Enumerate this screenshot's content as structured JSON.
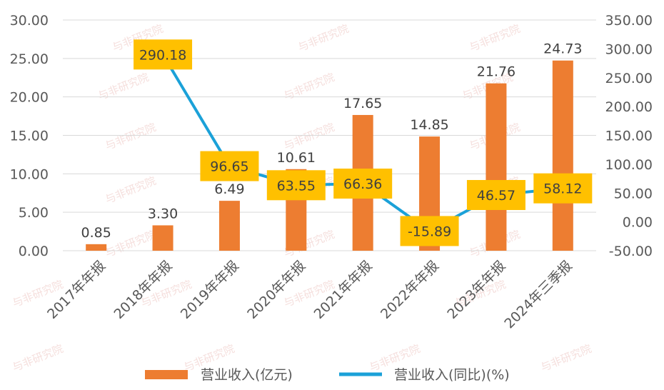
{
  "chart_data": {
    "type": "bar",
    "categories": [
      "2017年年报",
      "2018年年报",
      "2019年年报",
      "2020年年报",
      "2021年年报",
      "2022年年报",
      "2023年年报",
      "2024年三季报"
    ],
    "series": [
      {
        "name": "营业收入(亿元)",
        "type": "bar",
        "axis": "left",
        "color": "#ED7D31",
        "values": [
          0.85,
          3.3,
          6.49,
          10.61,
          17.65,
          14.85,
          21.76,
          24.73
        ],
        "labels": [
          "0.85",
          "3.30",
          "6.49",
          "10.61",
          "17.65",
          "14.85",
          "21.76",
          "24.73"
        ]
      },
      {
        "name": "营业收入(同比)(%)",
        "type": "line",
        "axis": "right",
        "color": "#1BA1D8",
        "values": [
          null,
          290.18,
          96.65,
          63.55,
          66.36,
          -15.89,
          46.57,
          58.12
        ],
        "labels": [
          "",
          "290.18",
          "96.65",
          "63.55",
          "66.36",
          "-15.89",
          "46.57",
          "58.12"
        ],
        "label_box_color": "#FFC000"
      }
    ],
    "y_left": {
      "ylim": [
        0,
        30
      ],
      "ticks": [
        "0.00",
        "5.00",
        "10.00",
        "15.00",
        "20.00",
        "25.00",
        "30.00"
      ]
    },
    "y_right": {
      "ylim": [
        -50,
        350
      ],
      "ticks": [
        "-50.00",
        "0.00",
        "50.00",
        "100.00",
        "150.00",
        "200.00",
        "250.00",
        "300.00",
        "350.00"
      ]
    },
    "grid": true,
    "legend_position": "bottom",
    "watermark": "与非研究院"
  }
}
